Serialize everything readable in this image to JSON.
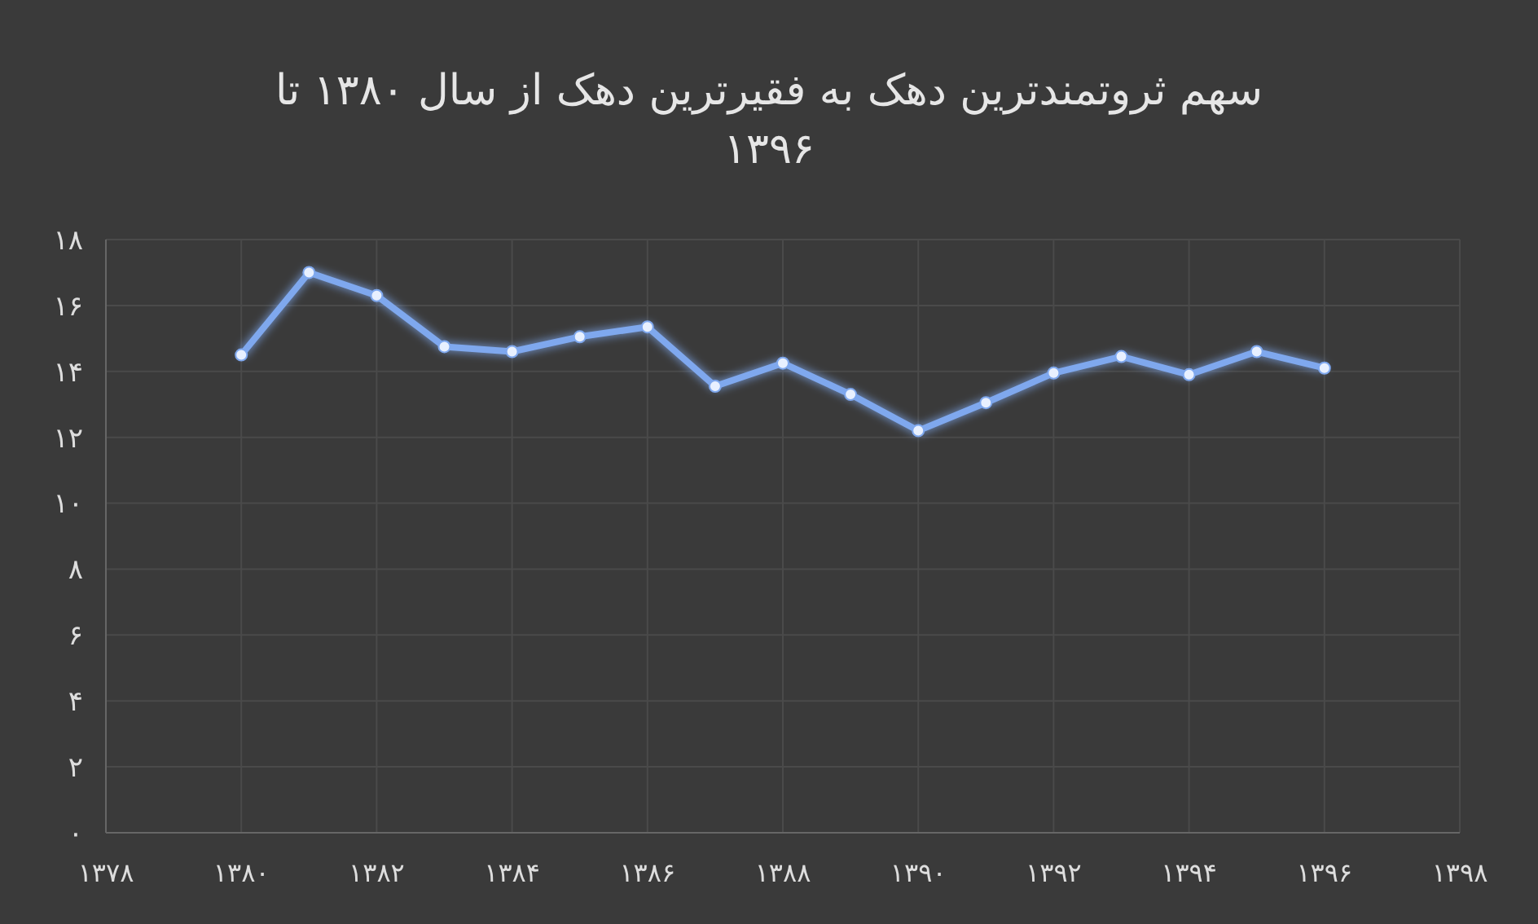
{
  "chart_data": {
    "type": "line",
    "title": "سهم ثروتمندترین دهک به فقیرترین دهک از سال ۱۳۸۰ تا ۱۳۹۶",
    "x": [
      1380,
      1381,
      1382,
      1383,
      1384,
      1385,
      1386,
      1387,
      1388,
      1389,
      1390,
      1391,
      1392,
      1393,
      1394,
      1395,
      1396
    ],
    "series": [
      {
        "color": "#7fa8ee",
        "values": [
          14.5,
          17.0,
          16.3,
          14.75,
          14.6,
          15.05,
          15.35,
          13.55,
          14.25,
          13.3,
          12.2,
          13.05,
          13.95,
          14.45,
          13.9,
          14.6,
          14.1
        ]
      }
    ],
    "xlim": [
      1378,
      1398
    ],
    "xticks": [
      {
        "value": 1378,
        "label": "۱۳۷۸"
      },
      {
        "value": 1380,
        "label": "۱۳۸۰"
      },
      {
        "value": 1382,
        "label": "۱۳۸۲"
      },
      {
        "value": 1384,
        "label": "۱۳۸۴"
      },
      {
        "value": 1386,
        "label": "۱۳۸۶"
      },
      {
        "value": 1388,
        "label": "۱۳۸۸"
      },
      {
        "value": 1390,
        "label": "۱۳۹۰"
      },
      {
        "value": 1392,
        "label": "۱۳۹۲"
      },
      {
        "value": 1394,
        "label": "۱۳۹۴"
      },
      {
        "value": 1396,
        "label": "۱۳۹۶"
      },
      {
        "value": 1398,
        "label": "۱۳۹۸"
      }
    ],
    "ylim": [
      0,
      18
    ],
    "yticks": [
      {
        "value": 0,
        "label": "۰"
      },
      {
        "value": 2,
        "label": "۲"
      },
      {
        "value": 4,
        "label": "۴"
      },
      {
        "value": 6,
        "label": "۶"
      },
      {
        "value": 8,
        "label": "۸"
      },
      {
        "value": 10,
        "label": "۱۰"
      },
      {
        "value": 12,
        "label": "۱۲"
      },
      {
        "value": 14,
        "label": "۱۴"
      },
      {
        "value": 16,
        "label": "۱۶"
      },
      {
        "value": 18,
        "label": "۱۸"
      }
    ],
    "grid": true,
    "marker": "circle",
    "line_style": "solid"
  }
}
